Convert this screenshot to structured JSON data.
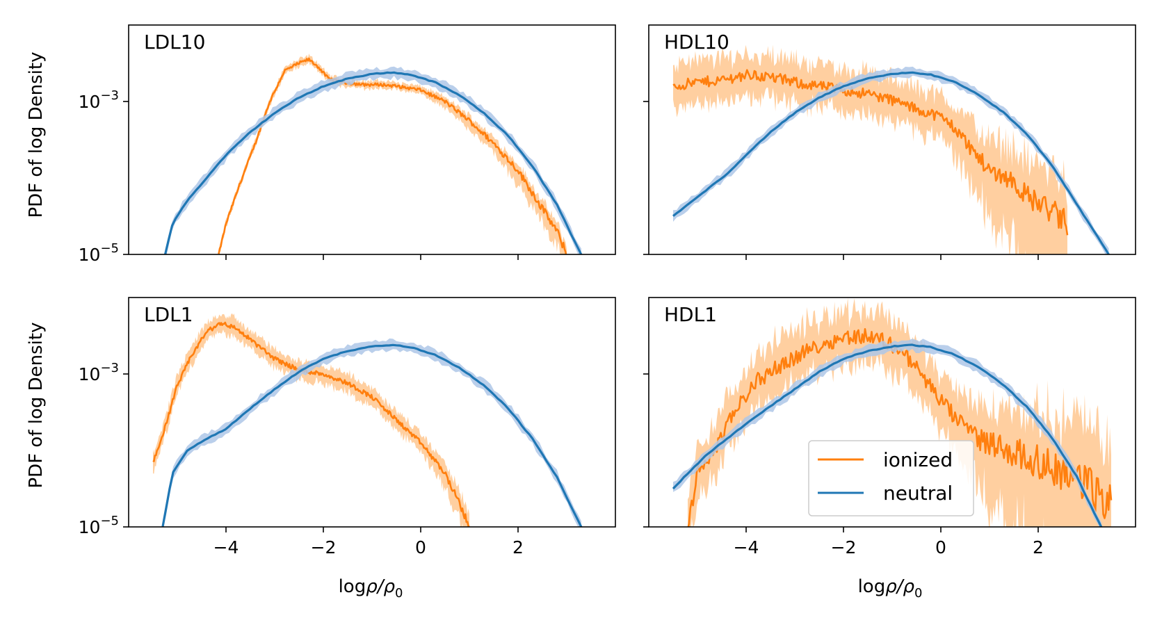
{
  "chart_data": {
    "type": "line",
    "layout": "2x2 grid, shared x and y axes",
    "x_axis": {
      "label_main": "log",
      "label_sym": "ρ/ρ",
      "label_sub": "0",
      "xlim": [
        -6.0,
        4.0
      ],
      "ticks": [
        {
          "value": -4,
          "label": "−4"
        },
        {
          "value": -2,
          "label": "−2"
        },
        {
          "value": 0,
          "label": "0"
        },
        {
          "value": 2,
          "label": "2"
        }
      ]
    },
    "y_axis": {
      "label": "PDF of log Density",
      "scale": "log",
      "ylim_log10": [
        -5.0,
        -2.0
      ],
      "ticks": [
        {
          "log10": -5,
          "base": "10",
          "exp": "−5"
        },
        {
          "log10": -3,
          "base": "10",
          "exp": "−3"
        }
      ]
    },
    "legend": {
      "panel": "HDL1",
      "placement": "lower-right",
      "entries": [
        {
          "series": "ionized",
          "label": "ionized",
          "color": "#ff7f0e"
        },
        {
          "series": "neutral",
          "label": "neutral",
          "color": "#1f77b4"
        }
      ]
    },
    "colors": {
      "ionized": "#ff7f0e",
      "ionized_band": "#ffbb78",
      "neutral": "#1f77b4",
      "neutral_band": "#aec7e8"
    },
    "panels": [
      {
        "label": "LDL10",
        "series": [
          {
            "name": "ionized",
            "noise": 0.02,
            "band": 0.05,
            "x": [
              -4.15,
              -4.0,
              -3.7,
              -3.4,
              -3.1,
              -2.8,
              -2.5,
              -2.3,
              -2.1,
              -1.9,
              -1.6,
              -1.2,
              -0.8,
              -0.5,
              0.0,
              0.5,
              1.0,
              1.5,
              2.0,
              2.5,
              2.8,
              3.0
            ],
            "y": [
              -5.0,
              -4.6,
              -4.05,
              -3.55,
              -3.0,
              -2.6,
              -2.5,
              -2.45,
              -2.55,
              -2.7,
              -2.75,
              -2.78,
              -2.78,
              -2.8,
              -2.85,
              -3.0,
              -3.25,
              -3.55,
              -3.9,
              -4.4,
              -4.7,
              -5.0
            ]
          },
          {
            "name": "neutral",
            "noise": 0.005,
            "band": 0.07,
            "x": [
              -5.25,
              -5.1,
              -4.8,
              -4.4,
              -4.0,
              -3.5,
              -3.0,
              -2.5,
              -2.0,
              -1.5,
              -1.0,
              -0.6,
              -0.2,
              0.3,
              0.8,
              1.3,
              1.8,
              2.3,
              2.8,
              3.1,
              3.3
            ],
            "y": [
              -5.0,
              -4.6,
              -4.3,
              -4.0,
              -3.7,
              -3.4,
              -3.15,
              -2.95,
              -2.8,
              -2.7,
              -2.64,
              -2.62,
              -2.65,
              -2.75,
              -2.92,
              -3.15,
              -3.45,
              -3.85,
              -4.35,
              -4.75,
              -5.0
            ]
          }
        ]
      },
      {
        "label": "HDL10",
        "series": [
          {
            "name": "ionized",
            "noise": 0.07,
            "band": 0.28,
            "x": [
              -5.5,
              -5.0,
              -4.5,
              -4.0,
              -3.5,
              -3.0,
              -2.5,
              -2.0,
              -1.5,
              -1.0,
              -0.5,
              0.0,
              0.3,
              0.6,
              1.0,
              1.4,
              1.8,
              2.2,
              2.6
            ],
            "y": [
              -2.8,
              -2.75,
              -2.72,
              -2.65,
              -2.68,
              -2.75,
              -2.8,
              -2.85,
              -2.9,
              -2.98,
              -3.1,
              -3.2,
              -3.35,
              -3.6,
              -3.9,
              -4.0,
              -4.25,
              -4.4,
              -4.6
            ]
          },
          {
            "name": "neutral",
            "noise": 0.005,
            "band": 0.06,
            "x": [
              -5.5,
              -5.2,
              -4.8,
              -4.4,
              -4.0,
              -3.5,
              -3.0,
              -2.5,
              -2.0,
              -1.5,
              -1.0,
              -0.6,
              -0.2,
              0.3,
              0.8,
              1.3,
              1.8,
              2.3,
              2.8,
              3.2,
              3.45
            ],
            "y": [
              -4.5,
              -4.35,
              -4.15,
              -3.95,
              -3.7,
              -3.4,
              -3.15,
              -2.95,
              -2.8,
              -2.7,
              -2.64,
              -2.62,
              -2.65,
              -2.75,
              -2.92,
              -3.15,
              -3.45,
              -3.85,
              -4.35,
              -4.75,
              -5.0
            ]
          }
        ]
      },
      {
        "label": "LDL1",
        "series": [
          {
            "name": "ionized",
            "noise": 0.03,
            "band": 0.12,
            "x": [
              -5.5,
              -5.3,
              -5.0,
              -4.7,
              -4.4,
              -4.1,
              -3.8,
              -3.4,
              -3.0,
              -2.5,
              -2.0,
              -1.5,
              -1.0,
              -0.5,
              0.0,
              0.5,
              0.8,
              1.0
            ],
            "y": [
              -4.15,
              -3.8,
              -3.15,
              -2.75,
              -2.45,
              -2.33,
              -2.4,
              -2.6,
              -2.8,
              -2.95,
              -3.0,
              -3.12,
              -3.3,
              -3.6,
              -3.9,
              -4.3,
              -4.7,
              -5.0
            ]
          },
          {
            "name": "neutral",
            "noise": 0.005,
            "band": 0.07,
            "x": [
              -5.3,
              -5.1,
              -4.8,
              -4.4,
              -4.0,
              -3.5,
              -3.0,
              -2.5,
              -2.0,
              -1.5,
              -1.0,
              -0.6,
              -0.2,
              0.3,
              0.8,
              1.3,
              1.8,
              2.3,
              2.8,
              3.1,
              3.3
            ],
            "y": [
              -5.0,
              -4.3,
              -4.0,
              -3.85,
              -3.72,
              -3.45,
              -3.2,
              -2.97,
              -2.8,
              -2.7,
              -2.64,
              -2.62,
              -2.65,
              -2.75,
              -2.92,
              -3.15,
              -3.45,
              -3.85,
              -4.35,
              -4.75,
              -5.0
            ]
          }
        ]
      },
      {
        "label": "HDL1",
        "series": [
          {
            "name": "ionized",
            "noise": 0.1,
            "band": 0.35,
            "x": [
              -5.2,
              -5.0,
              -4.6,
              -4.2,
              -3.8,
              -3.2,
              -2.6,
              -2.0,
              -1.6,
              -1.2,
              -0.8,
              -0.4,
              0.0,
              0.4,
              0.8,
              1.2,
              1.6,
              2.0,
              2.4,
              2.8,
              3.2,
              3.5
            ],
            "y": [
              -5.0,
              -4.3,
              -3.95,
              -3.45,
              -3.1,
              -2.85,
              -2.65,
              -2.52,
              -2.5,
              -2.55,
              -2.7,
              -3.0,
              -3.35,
              -3.65,
              -3.85,
              -3.95,
              -4.05,
              -4.15,
              -4.25,
              -4.35,
              -4.55,
              -4.75
            ]
          },
          {
            "name": "neutral",
            "noise": 0.005,
            "band": 0.07,
            "x": [
              -5.5,
              -5.2,
              -4.8,
              -4.4,
              -4.0,
              -3.5,
              -3.0,
              -2.5,
              -2.0,
              -1.5,
              -1.0,
              -0.6,
              -0.2,
              0.3,
              0.8,
              1.3,
              1.8,
              2.3,
              2.8,
              3.1,
              3.3
            ],
            "y": [
              -4.5,
              -4.3,
              -4.05,
              -3.85,
              -3.65,
              -3.42,
              -3.2,
              -2.97,
              -2.8,
              -2.7,
              -2.64,
              -2.62,
              -2.65,
              -2.75,
              -2.92,
              -3.15,
              -3.45,
              -3.85,
              -4.35,
              -4.75,
              -5.0
            ]
          }
        ]
      }
    ]
  }
}
